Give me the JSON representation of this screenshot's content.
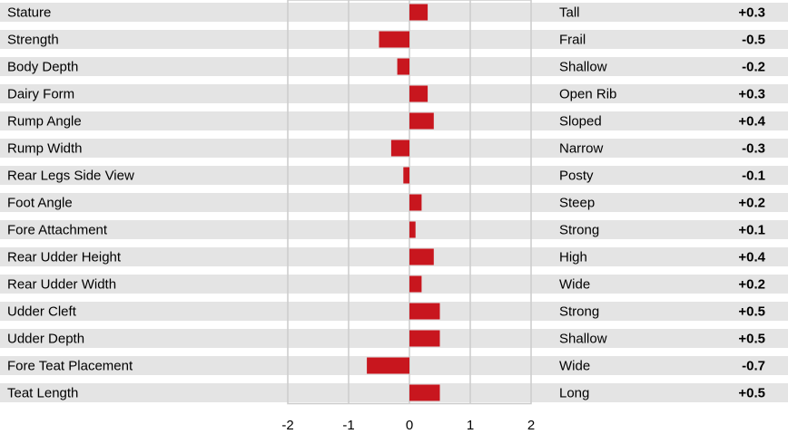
{
  "chart_data": {
    "type": "bar",
    "orientation": "horizontal",
    "xlim": [
      -2,
      2
    ],
    "xticks": [
      "-2",
      "-1",
      "0",
      "1",
      "2"
    ],
    "bar_color": "#c8161e",
    "row_band_color": "#e4e4e4",
    "grid_color": "#cccccc",
    "traits": [
      {
        "name": "Stature",
        "descriptor": "Tall",
        "value": 0.3,
        "display": "+0.3"
      },
      {
        "name": "Strength",
        "descriptor": "Frail",
        "value": -0.5,
        "display": "-0.5"
      },
      {
        "name": "Body Depth",
        "descriptor": "Shallow",
        "value": -0.2,
        "display": "-0.2"
      },
      {
        "name": "Dairy Form",
        "descriptor": "Open Rib",
        "value": 0.3,
        "display": "+0.3"
      },
      {
        "name": "Rump Angle",
        "descriptor": "Sloped",
        "value": 0.4,
        "display": "+0.4"
      },
      {
        "name": "Rump Width",
        "descriptor": "Narrow",
        "value": -0.3,
        "display": "-0.3"
      },
      {
        "name": "Rear Legs Side View",
        "descriptor": "Posty",
        "value": -0.1,
        "display": "-0.1"
      },
      {
        "name": "Foot Angle",
        "descriptor": "Steep",
        "value": 0.2,
        "display": "+0.2"
      },
      {
        "name": "Fore Attachment",
        "descriptor": "Strong",
        "value": 0.1,
        "display": "+0.1"
      },
      {
        "name": "Rear Udder Height",
        "descriptor": "High",
        "value": 0.4,
        "display": "+0.4"
      },
      {
        "name": "Rear Udder Width",
        "descriptor": "Wide",
        "value": 0.2,
        "display": "+0.2"
      },
      {
        "name": "Udder Cleft",
        "descriptor": "Strong",
        "value": 0.5,
        "display": "+0.5"
      },
      {
        "name": "Udder Depth",
        "descriptor": "Shallow",
        "value": 0.5,
        "display": "+0.5"
      },
      {
        "name": "Fore Teat Placement",
        "descriptor": "Wide",
        "value": -0.7,
        "display": "-0.7"
      },
      {
        "name": "Teat Length",
        "descriptor": "Long",
        "value": 0.5,
        "display": "+0.5"
      }
    ]
  }
}
